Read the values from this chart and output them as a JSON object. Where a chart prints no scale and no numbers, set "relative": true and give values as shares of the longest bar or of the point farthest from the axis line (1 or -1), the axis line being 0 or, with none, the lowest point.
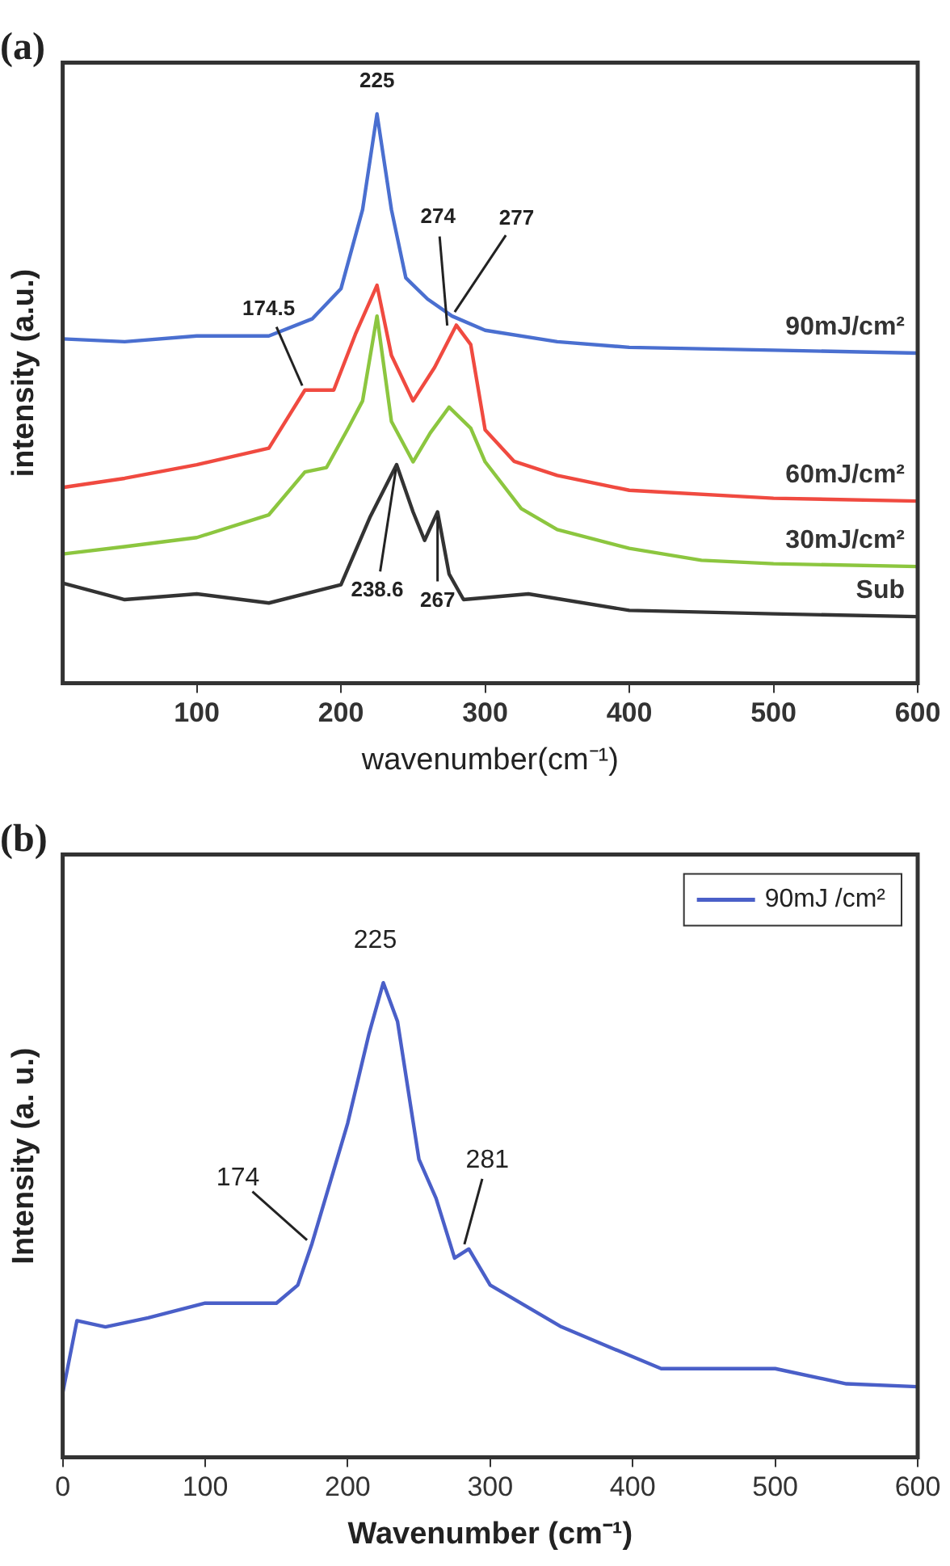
{
  "chart_data": [
    {
      "type": "line",
      "title": "(a)",
      "xlabel": "wavenumber(cm⁻¹)",
      "ylabel": "intensity (a.u.)",
      "relative": true,
      "xlim": [
        7,
        600
      ],
      "xticks": [
        100,
        200,
        300,
        400,
        500,
        600
      ],
      "grid": false,
      "legend": false,
      "marker": "none",
      "line_style": "solid",
      "series": [
        {
          "name": "90mJ/cm²",
          "color": "#4a6fd0",
          "x": [
            7,
            50,
            100,
            150,
            180,
            200,
            215,
            225,
            235,
            245,
            260,
            277,
            300,
            350,
            400,
            500,
            600
          ],
          "values": [
            0.605,
            0.6,
            0.61,
            0.61,
            0.64,
            0.693,
            0.832,
            1.0,
            0.832,
            0.712,
            0.675,
            0.645,
            0.62,
            0.6,
            0.59,
            0.585,
            0.58
          ]
        },
        {
          "name": "60mJ/cm²",
          "color": "#f04a40",
          "x": [
            7,
            50,
            100,
            150,
            175,
            195,
            210,
            225,
            235,
            250,
            265,
            280,
            290,
            300,
            320,
            350,
            400,
            500,
            600
          ],
          "values": [
            0.344,
            0.36,
            0.384,
            0.413,
            0.515,
            0.515,
            0.613,
            0.699,
            0.576,
            0.496,
            0.555,
            0.629,
            0.595,
            0.445,
            0.39,
            0.365,
            0.339,
            0.325,
            0.32
          ]
        },
        {
          "name": "30mJ/cm²",
          "color": "#8cc63f",
          "x": [
            7,
            50,
            100,
            150,
            175,
            190,
            205,
            215,
            225,
            235,
            250,
            262,
            275,
            290,
            300,
            325,
            350,
            400,
            450,
            500,
            600
          ],
          "values": [
            0.227,
            0.24,
            0.256,
            0.296,
            0.371,
            0.379,
            0.448,
            0.496,
            0.645,
            0.46,
            0.389,
            0.44,
            0.485,
            0.448,
            0.389,
            0.307,
            0.27,
            0.237,
            0.216,
            0.21,
            0.205
          ]
        },
        {
          "name": "Sub",
          "color": "#333333",
          "x": [
            7,
            50,
            100,
            150,
            200,
            220,
            238.6,
            250,
            258,
            267,
            275,
            285,
            330,
            400,
            500,
            600
          ],
          "values": [
            0.176,
            0.147,
            0.157,
            0.141,
            0.173,
            0.291,
            0.384,
            0.301,
            0.251,
            0.301,
            0.192,
            0.147,
            0.157,
            0.128,
            0.122,
            0.117
          ]
        }
      ],
      "annotations": [
        {
          "text": "225",
          "x": 225,
          "y": 1.0
        },
        {
          "text": "274",
          "x": 274,
          "y": 0.62
        },
        {
          "text": "277",
          "x": 277,
          "y": 0.645
        },
        {
          "text": "174.5",
          "x": 174.5,
          "y": 0.515
        },
        {
          "text": "238.6",
          "x": 238.6,
          "y": 0.384
        },
        {
          "text": "267",
          "x": 267,
          "y": 0.301
        }
      ]
    },
    {
      "type": "line",
      "title": "(b)",
      "xlabel": "Wavenumber (cm⁻¹)",
      "ylabel": "Intensity (a. u.)",
      "relative": true,
      "xlim": [
        0,
        600
      ],
      "xticks": [
        0,
        100,
        200,
        300,
        400,
        500,
        600
      ],
      "grid": false,
      "legend": "top right",
      "marker": "none",
      "line_style": "solid",
      "series": [
        {
          "name": "90mJ /cm²",
          "color": "#4a5fc8",
          "x": [
            0,
            10,
            30,
            60,
            100,
            150,
            165,
            175,
            200,
            215,
            225,
            235,
            250,
            262,
            275,
            285,
            300,
            350,
            400,
            420,
            500,
            550,
            600
          ],
          "values": [
            0.136,
            0.288,
            0.275,
            0.294,
            0.325,
            0.325,
            0.363,
            0.451,
            0.704,
            0.893,
            1.0,
            0.918,
            0.628,
            0.546,
            0.42,
            0.439,
            0.363,
            0.275,
            0.212,
            0.187,
            0.187,
            0.155,
            0.149
          ]
        }
      ],
      "annotations": [
        {
          "text": "225",
          "x": 225,
          "y": 1.0
        },
        {
          "text": "281",
          "x": 281,
          "y": 0.439
        },
        {
          "text": "174",
          "x": 174,
          "y": 0.451
        }
      ]
    }
  ]
}
